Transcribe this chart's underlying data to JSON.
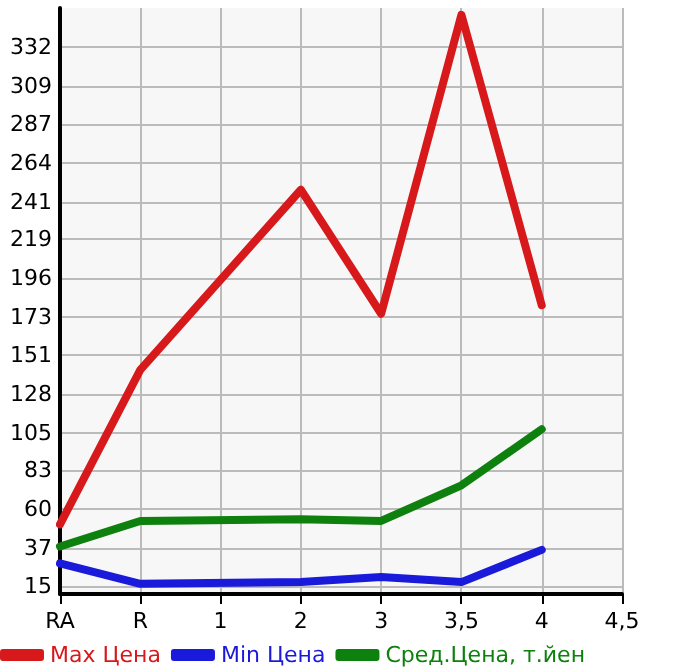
{
  "chart_data": {
    "type": "line",
    "categories": [
      "RA",
      "R",
      "1",
      "2",
      "3",
      "3,5",
      "4",
      "4,5"
    ],
    "series": [
      {
        "name": "Max Цена",
        "color": "#d7191c",
        "values": [
          51,
          142,
          null,
          248,
          175,
          351,
          180,
          null
        ]
      },
      {
        "name": "Min Цена",
        "color": "#1a1adb",
        "values": [
          28,
          16,
          null,
          17,
          20,
          17,
          36,
          null
        ]
      },
      {
        "name": "Сред.Цена, т.йен",
        "color": "#0d800d",
        "values": [
          38,
          53,
          null,
          54,
          53,
          74,
          107,
          null
        ]
      }
    ],
    "ylim": [
      10,
      355
    ],
    "yticks": [
      15,
      37,
      60,
      83,
      105,
      128,
      151,
      173,
      196,
      219,
      241,
      264,
      287,
      309,
      332
    ],
    "grid": true,
    "legend": "bottom",
    "marker": "none",
    "line_style": "solid"
  }
}
